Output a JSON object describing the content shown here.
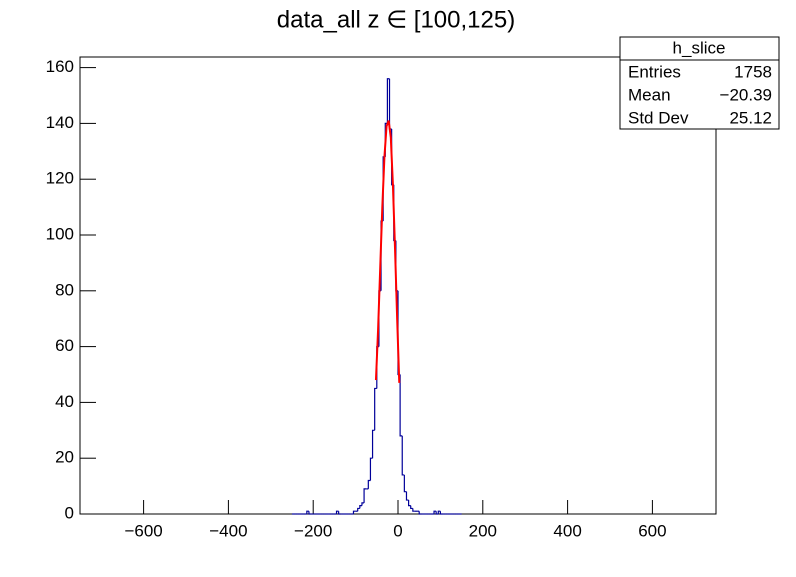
{
  "chart_data": {
    "type": "histogram",
    "title": "data_all z ∈ [100,125)",
    "color": "#000099",
    "bins": [
      -250,
      -245,
      -240,
      -235,
      -230,
      -225,
      -220,
      -215,
      -210,
      -205,
      -200,
      -195,
      -190,
      -185,
      -180,
      -175,
      -170,
      -165,
      -160,
      -155,
      -150,
      -145,
      -140,
      -135,
      -130,
      -125,
      -120,
      -115,
      -110,
      -105,
      -100,
      -95,
      -90,
      -85,
      -80,
      -75,
      -70,
      -65,
      -60,
      -55,
      -50,
      -45,
      -40,
      -35,
      -30,
      -25,
      -20,
      -15,
      -10,
      -5,
      0,
      5,
      10,
      15,
      20,
      25,
      30,
      35,
      40,
      45,
      50,
      55,
      60,
      65,
      70,
      75,
      80,
      85,
      90,
      95,
      100,
      105,
      110,
      115,
      120,
      125,
      130,
      135,
      140,
      145,
      150
    ],
    "values": [
      0,
      0,
      0,
      0,
      0,
      0,
      0,
      1,
      0,
      0,
      0,
      0,
      0,
      0,
      0,
      0,
      0,
      0,
      0,
      0,
      0,
      1,
      0,
      0,
      0,
      0,
      0,
      0,
      0,
      1,
      1,
      2,
      3,
      4,
      9,
      9,
      12,
      20,
      30,
      45,
      60,
      80,
      105,
      128,
      140,
      156,
      138,
      118,
      98,
      80,
      50,
      28,
      14,
      8,
      5,
      3,
      2,
      1,
      1,
      1,
      0,
      0,
      0,
      0,
      0,
      0,
      0,
      1,
      0,
      1,
      0,
      0,
      0,
      0,
      0,
      0,
      0,
      0,
      0,
      0
    ],
    "fit": {
      "color": "#ff0000",
      "x": [
        -52,
        -47,
        -42,
        -37,
        -32,
        -27,
        -22,
        -17,
        -12,
        -7,
        -2,
        3
      ],
      "values": [
        48,
        66,
        88,
        110,
        128,
        139,
        141,
        135,
        118,
        95,
        70,
        47
      ]
    },
    "xlim": [
      -750,
      750
    ],
    "ylim": [
      0,
      163.8
    ],
    "xticks": [
      {
        "value": -600,
        "label": "−600"
      },
      {
        "value": -400,
        "label": "−400"
      },
      {
        "value": -200,
        "label": "−200"
      },
      0,
      200,
      400,
      600
    ],
    "yticks": [
      0,
      20,
      40,
      60,
      80,
      100,
      120,
      140,
      160
    ],
    "stats": {
      "title": "h_slice",
      "rows": [
        [
          "Entries",
          "1758"
        ],
        [
          "Mean",
          "−20.39"
        ],
        [
          "Std Dev",
          "25.12"
        ]
      ]
    }
  }
}
